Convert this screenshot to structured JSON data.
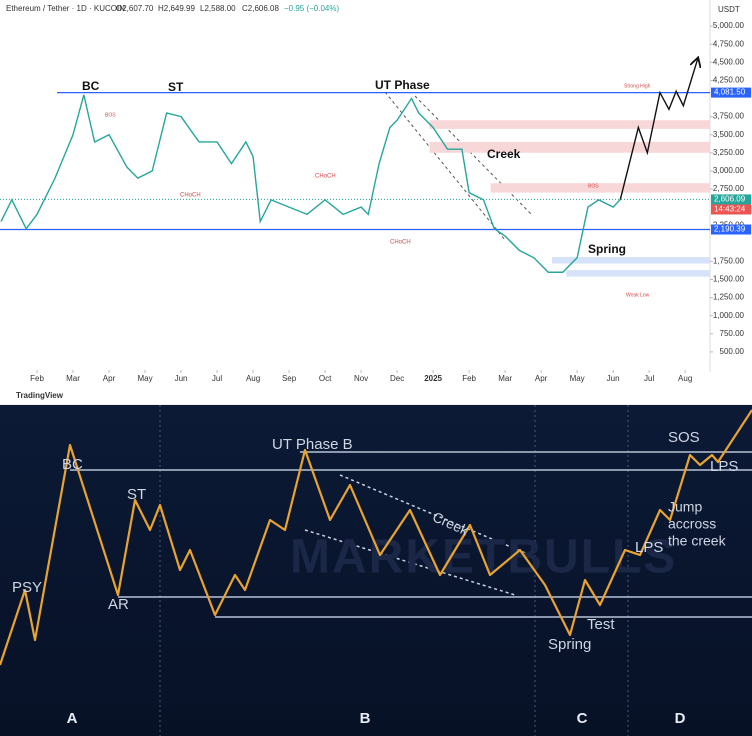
{
  "header": {
    "symbol": "Ethereum / Tether · 1D · KUCOIN",
    "ohlc": [
      "O2,607.70",
      "H2,649.99",
      "L2,588.00",
      "C2,606.08"
    ],
    "change": "−0.95 (−0.04%)",
    "currency": "USDT",
    "brand": "TradingView"
  },
  "chart_data": [
    {
      "type": "line",
      "color": "#26a69a",
      "x": [
        0,
        0.3,
        0.7,
        1,
        1.5,
        2,
        2.3,
        2.6,
        3,
        3.5,
        3.8,
        4.2,
        4.6,
        5,
        5.5,
        6,
        6.4,
        6.8,
        7,
        7.2,
        7.5,
        8,
        8.5,
        9,
        9.5,
        10,
        10.2,
        10.5,
        10.8,
        11,
        11.4,
        11.6,
        12,
        12.4,
        12.8,
        13,
        13.4,
        13.7,
        14,
        14.4,
        14.8,
        15.2,
        15.6,
        16,
        16.3,
        16.6,
        17,
        17.2
      ],
      "values": [
        2300,
        2600,
        2200,
        2400,
        2900,
        3500,
        4050,
        3400,
        3500,
        3050,
        2900,
        3000,
        3800,
        3750,
        3400,
        3400,
        3100,
        3400,
        3200,
        2300,
        2600,
        2500,
        2400,
        2600,
        2400,
        2500,
        2400,
        3100,
        3600,
        3700,
        4000,
        3800,
        3600,
        3300,
        3300,
        2700,
        2600,
        2200,
        2100,
        1900,
        1800,
        1600,
        1600,
        1800,
        2500,
        2600,
        2500,
        2606
      ],
      "projection": {
        "color": "#111111",
        "x": [
          17.2,
          17.7,
          17.95,
          18.3,
          18.55,
          18.75,
          18.95,
          19.35
        ],
        "values": [
          2606,
          3600,
          3250,
          4081.5,
          3850,
          4100,
          3900,
          4550
        ]
      },
      "xlim": [
        0,
        19.69
      ],
      "ylim": [
        250,
        5250
      ],
      "xticks": [
        {
          "value": 1,
          "label": "Feb"
        },
        {
          "value": 2,
          "label": "Mar"
        },
        {
          "value": 3,
          "label": "Apr"
        },
        {
          "value": 4,
          "label": "May"
        },
        {
          "value": 5,
          "label": "Jun"
        },
        {
          "value": 6,
          "label": "Jul"
        },
        {
          "value": 7,
          "label": "Aug"
        },
        {
          "value": 8,
          "label": "Sep"
        },
        {
          "value": 9,
          "label": "Oct"
        },
        {
          "value": 10,
          "label": "Nov"
        },
        {
          "value": 11,
          "label": "Dec"
        },
        {
          "value": 12,
          "label": "2025"
        },
        {
          "value": 13,
          "label": "Feb"
        },
        {
          "value": 14,
          "label": "Mar"
        },
        {
          "value": 15,
          "label": "Apr"
        },
        {
          "value": 16,
          "label": "May"
        },
        {
          "value": 17,
          "label": "Jun"
        },
        {
          "value": 18,
          "label": "Jul"
        },
        {
          "value": 19,
          "label": "Aug"
        }
      ],
      "yticks": [
        {
          "value": 5000,
          "label": "5,000.00"
        },
        {
          "value": 4750,
          "label": "4,750.00"
        },
        {
          "value": 4500,
          "label": "4,500.00"
        },
        {
          "value": 4250,
          "label": "4,250.00"
        },
        {
          "value": 3750,
          "label": "3,750.00"
        },
        {
          "value": 3500,
          "label": "3,500.00"
        },
        {
          "value": 3250,
          "label": "3,250.00"
        },
        {
          "value": 3000,
          "label": "3,000.00"
        },
        {
          "value": 2750,
          "label": "2,750.00"
        },
        {
          "value": 2250,
          "label": "2,250.00"
        },
        {
          "value": 1750,
          "label": "1,750.00"
        },
        {
          "value": 1500,
          "label": "1,500.00"
        },
        {
          "value": 1250,
          "label": "1,250.00"
        },
        {
          "value": 1000,
          "label": "1,000.00"
        },
        {
          "value": 750,
          "label": "750.00"
        },
        {
          "value": 500,
          "label": "500.00"
        }
      ],
      "levels": [
        {
          "value": 4081.5,
          "label": "4,081.50",
          "color": "#2962ff"
        },
        {
          "value": 2190.39,
          "label": "2,190.39",
          "color": "#2962ff"
        }
      ],
      "last_price": {
        "value": 2606.09,
        "label": "2,606.09",
        "color": "#26a69a",
        "countdown": "14:43:24"
      },
      "zones": [
        {
          "from": 3700,
          "to": 3580,
          "x0": 11.9,
          "color": "#f8d7d9"
        },
        {
          "from": 3400,
          "to": 3250,
          "x0": 11.9,
          "color": "#f8d7d9"
        },
        {
          "from": 2830,
          "to": 2700,
          "x0": 13.6,
          "color": "#f8d7d9"
        },
        {
          "from": 1810,
          "to": 1720,
          "x0": 15.3,
          "color": "#d6e2f8"
        },
        {
          "from": 1630,
          "to": 1540,
          "x0": 15.7,
          "color": "#d6e2f8"
        }
      ],
      "annotations": [
        "BC",
        "ST",
        "UT Phase",
        "Creek",
        "Spring",
        "CHoCH",
        "CHoCH",
        "CHoCH",
        "Strong High",
        "Weak Low",
        "BOS",
        "BOS"
      ]
    },
    {
      "type": "line",
      "color": "#e8a330",
      "x": [
        0,
        25,
        35,
        70,
        118,
        135,
        150,
        160,
        180,
        190,
        215,
        235,
        245,
        270,
        285,
        305,
        330,
        350,
        380,
        410,
        440,
        470,
        490,
        520,
        545,
        570,
        585,
        600,
        625,
        640,
        660,
        670,
        690,
        700,
        712,
        718,
        752
      ],
      "values": [
        71,
        146,
        96,
        291,
        141,
        236,
        206,
        231,
        166,
        186,
        121,
        161,
        146,
        216,
        206,
        286,
        216,
        251,
        181,
        226,
        161,
        211,
        161,
        186,
        151,
        101,
        156,
        131,
        186,
        181,
        226,
        216,
        281,
        271,
        281,
        274,
        326
      ],
      "xlim": [
        0,
        752
      ],
      "ylim": [
        0,
        331
      ],
      "levels": [
        {
          "value": 284,
          "x0": 300
        },
        {
          "value": 266,
          "x0": 70
        },
        {
          "value": 139,
          "x0": 118
        },
        {
          "value": 119,
          "x0": 215
        }
      ],
      "annotations": [
        "PSY",
        "BC",
        "AR",
        "ST",
        "UT Phase B",
        "Creek",
        "Spring",
        "Test",
        "LPS",
        "SOS",
        "LPS",
        "Jump",
        "accross",
        "the creek",
        "MARKETBULLS"
      ],
      "phases": [
        "A",
        "B",
        "C",
        "D"
      ]
    }
  ]
}
